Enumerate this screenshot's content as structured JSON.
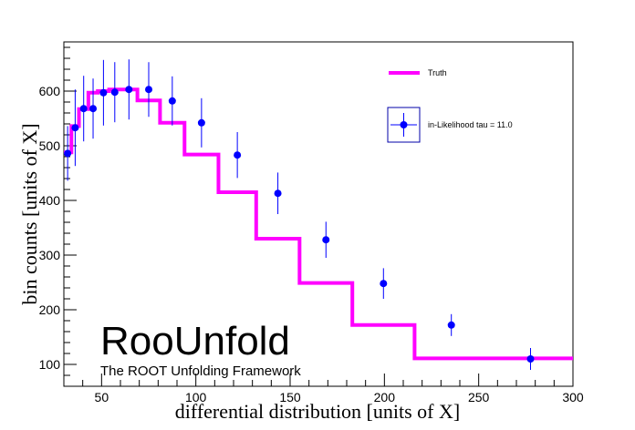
{
  "chart_data": {
    "type": "line",
    "title": "",
    "xlabel": "differential distribution [units of X]",
    "ylabel": "bin counts [units of X]",
    "xlim": [
      30,
      300
    ],
    "ylim": [
      60,
      690
    ],
    "xticks": [
      50,
      100,
      150,
      200,
      250,
      300
    ],
    "yticks": [
      100,
      200,
      300,
      400,
      500,
      600
    ],
    "grid": false,
    "legend_position": "top-right",
    "bin_edges": [
      30,
      34,
      38,
      43,
      48,
      54,
      60,
      69,
      81,
      94,
      112,
      132,
      155,
      183,
      216,
      255,
      300
    ],
    "series": [
      {
        "name": "Truth",
        "style": "step",
        "color": "#ff00ff",
        "values": [
          488,
          536,
          567,
          597,
          600,
          603,
          603,
          583,
          542,
          484,
          415,
          330,
          249,
          172,
          111,
          111
        ]
      },
      {
        "name": "in-Likelihood tau = 11.0",
        "style": "points-with-errors",
        "color": "#0000ff",
        "x": [
          32,
          36,
          40.5,
          45.5,
          51,
          57,
          64.5,
          75,
          87.5,
          103,
          122,
          143.5,
          169,
          199.5,
          235.5,
          277.5
        ],
        "y": [
          486,
          533,
          568,
          568,
          597,
          598,
          603,
          603,
          582,
          542,
          483,
          413,
          328,
          248,
          172,
          110
        ],
        "err": [
          50,
          70,
          60,
          55,
          60,
          55,
          55,
          50,
          45,
          45,
          42,
          38,
          33,
          28,
          20,
          20
        ]
      }
    ],
    "annotations": {
      "brand_title": "RooUnfold",
      "brand_subtitle": "The ROOT Unfolding Framework"
    }
  }
}
